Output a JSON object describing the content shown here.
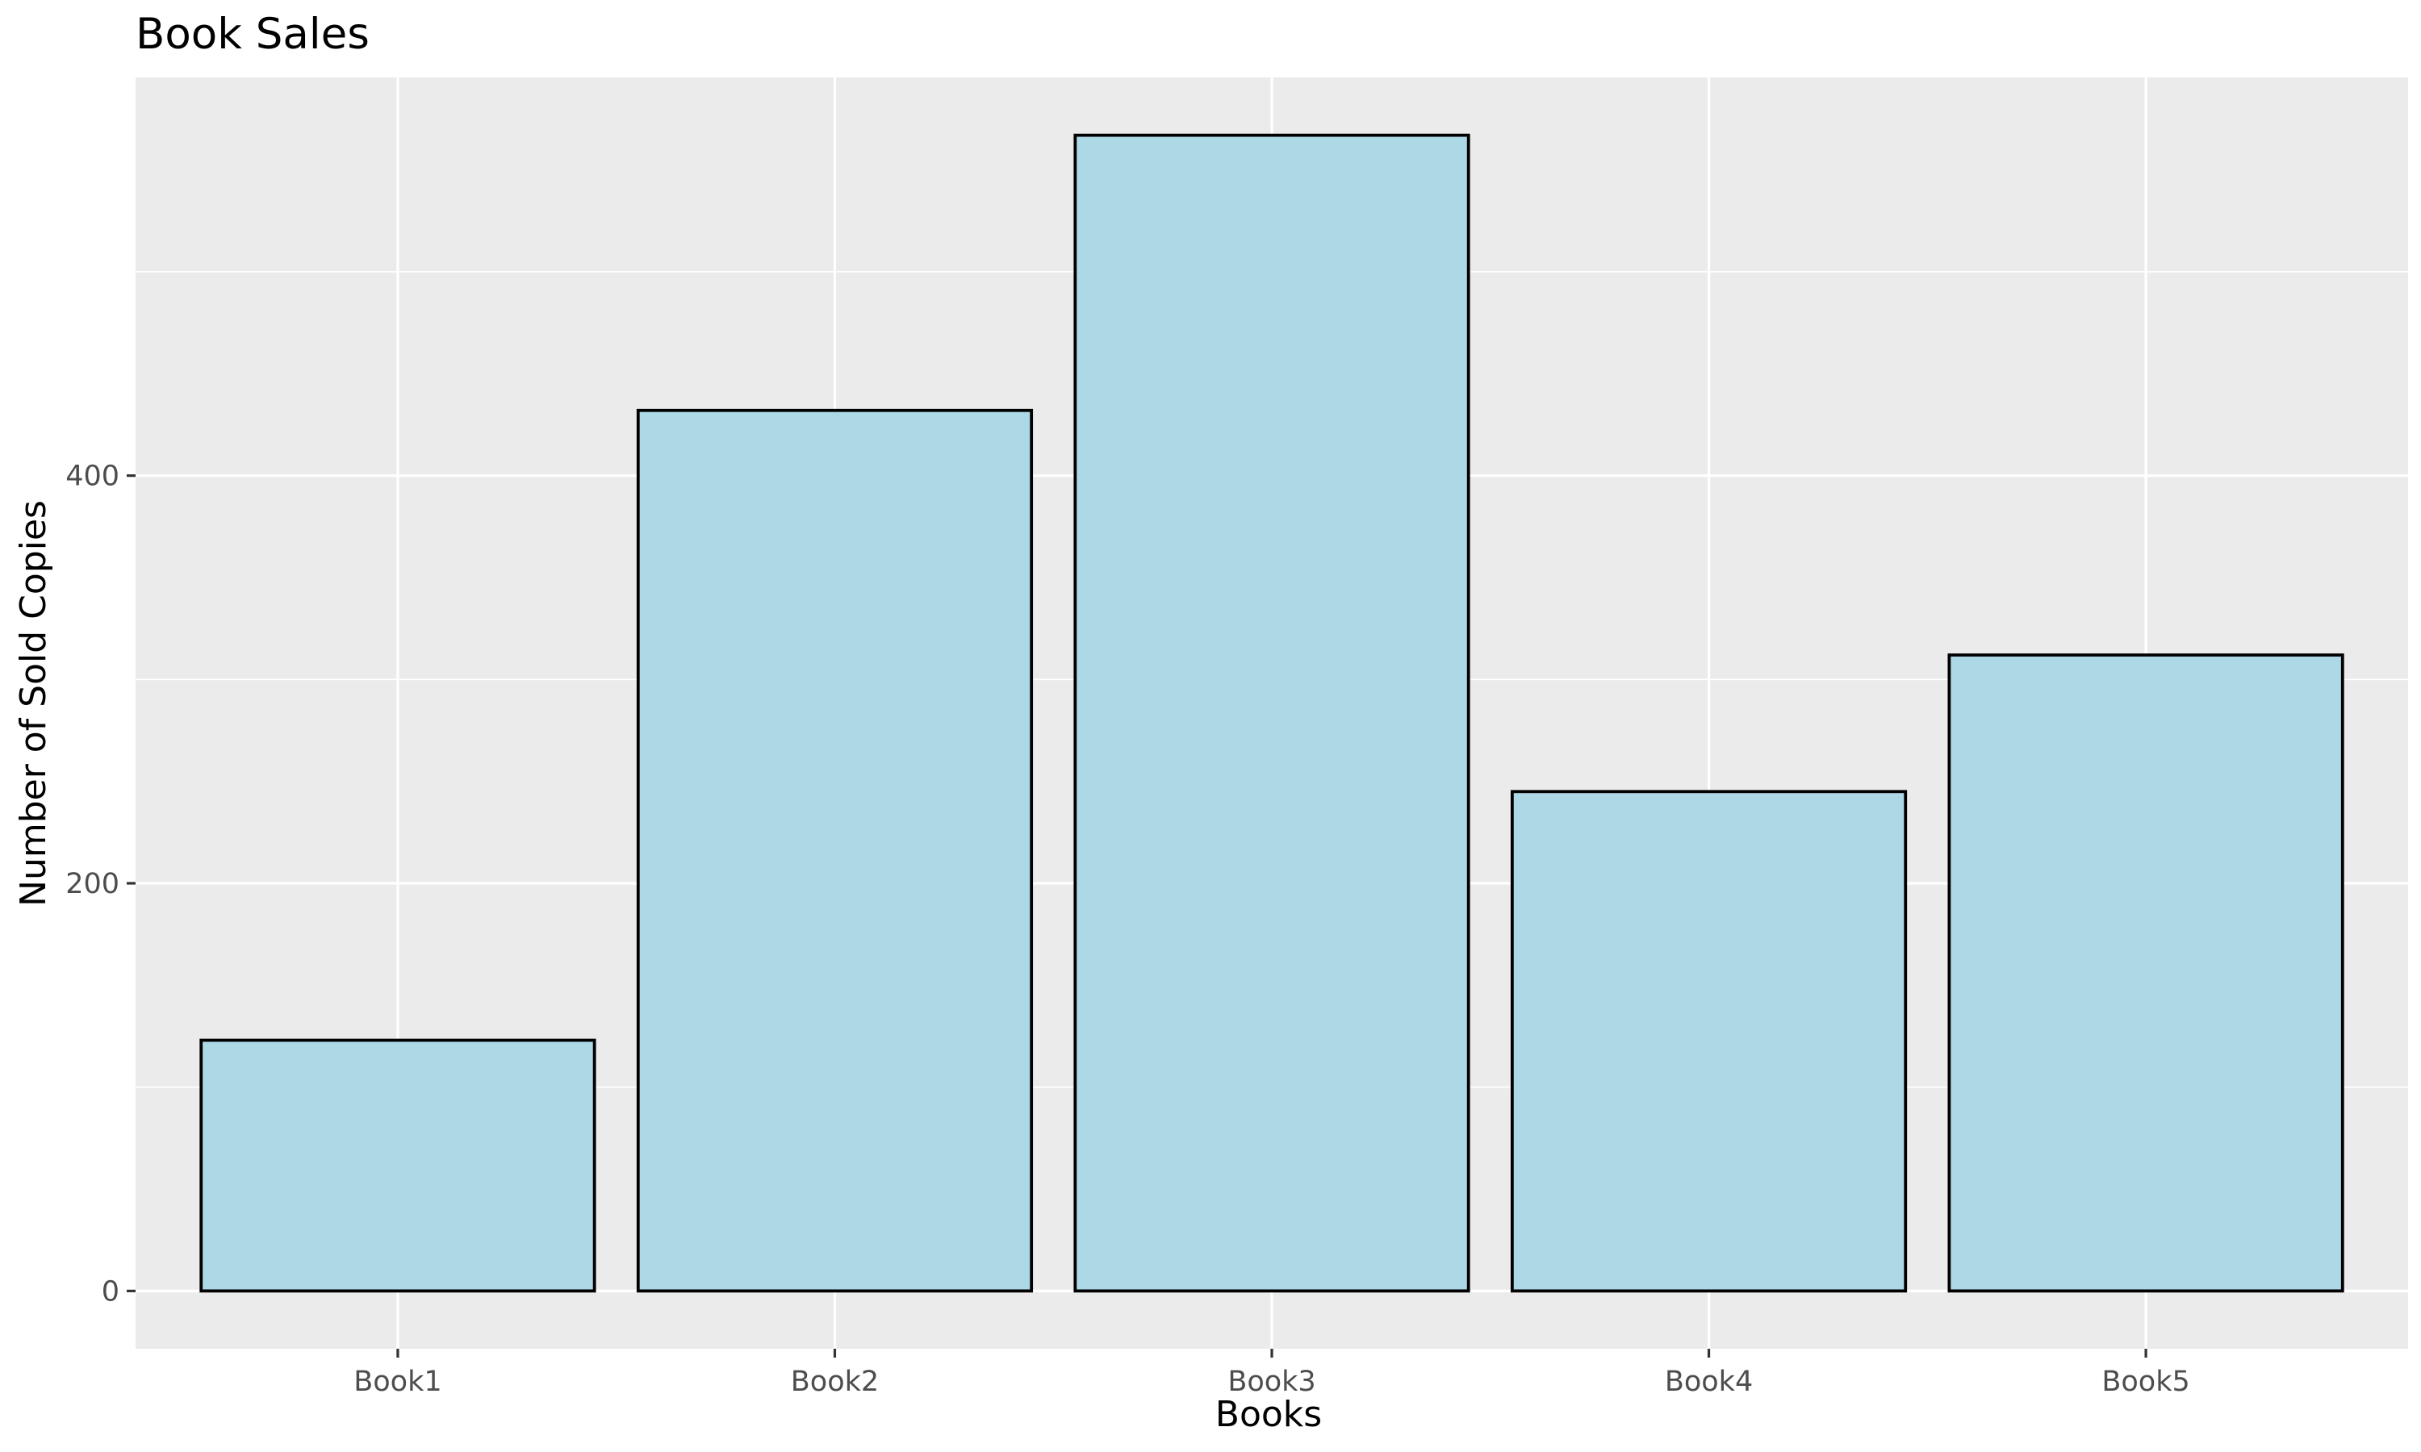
{
  "chart_data": {
    "type": "bar",
    "title": "Book Sales",
    "xlabel": "Books",
    "ylabel": "Number of Sold Copies",
    "categories": [
      "Book1",
      "Book2",
      "Book3",
      "Book4",
      "Book5"
    ],
    "values": [
      123,
      432,
      567,
      245,
      312
    ],
    "ylim": [
      -28.35,
      595.35
    ],
    "yticks": [
      0,
      200,
      400
    ],
    "yticks_minor": [
      100,
      300,
      500
    ],
    "grid": true,
    "legend": "none",
    "colors": {
      "bar_fill": "#add8e6",
      "bar_outline": "#000000",
      "panel_background": "#ebebeb",
      "grid": "#ffffff"
    }
  }
}
